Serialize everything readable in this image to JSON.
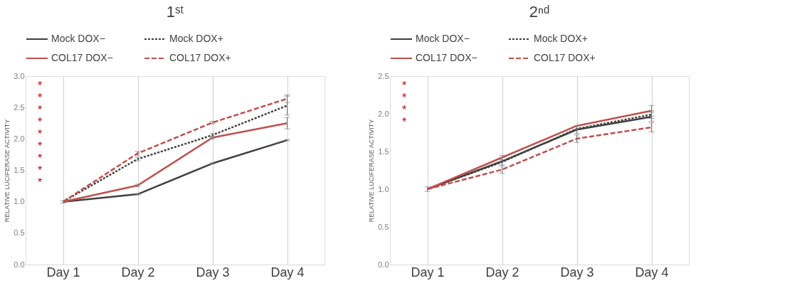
{
  "chart_data": [
    {
      "type": "line",
      "title": "1ˢᵗ",
      "ylabel": "RELATIVE LUCIFERASE ACTIVITY",
      "categories": [
        "Day 1",
        "Day 2",
        "Day 3",
        "Day 4"
      ],
      "ylim": [
        0,
        3
      ],
      "yticks": [
        {
          "value": 0,
          "label": "0.0"
        },
        {
          "value": 0.5,
          "label": "0.5"
        },
        {
          "value": 1,
          "label": "1.0"
        },
        {
          "value": 1.5,
          "label": "1.5"
        },
        {
          "value": 2,
          "label": "2.0"
        },
        {
          "value": 2.5,
          "label": "2.5"
        },
        {
          "value": 3,
          "label": "3.0"
        }
      ],
      "grid": "x",
      "legend": "top",
      "marker": "none",
      "series": [
        {
          "name": "Mock DOX−",
          "color": "#404040",
          "line_style": "solid",
          "values": [
            1.0,
            1.12,
            1.61,
            1.98
          ],
          "errors": [
            0.02,
            0.01,
            0.01,
            0.01
          ]
        },
        {
          "name": "Mock DOX+",
          "color": "#404040",
          "line_style": "dotted",
          "values": [
            1.0,
            1.68,
            2.06,
            2.53
          ],
          "errors": [
            null,
            0.03,
            0.03,
            0.15
          ]
        },
        {
          "name": "COL17 DOX−",
          "color": "#c0504d",
          "line_style": "solid",
          "values": [
            1.0,
            1.26,
            2.02,
            2.25
          ],
          "errors": [
            null,
            0.02,
            0.02,
            0.09
          ]
        },
        {
          "name": "COL17 DOX+",
          "color": "#c0504d",
          "line_style": "dashed",
          "values": [
            1.0,
            1.77,
            2.26,
            2.64
          ],
          "errors": [
            null,
            0.03,
            0.02,
            0.06
          ]
        }
      ],
      "annotations": [
        "*",
        "*",
        "*",
        "*",
        "*",
        "*",
        "*",
        "*",
        "*"
      ]
    },
    {
      "type": "line",
      "title": "2ⁿᵈ",
      "ylabel": "RELATIVE LUCIFERASE ACTIVITY",
      "categories": [
        "Day 1",
        "Day 2",
        "Day 3",
        "Day 4"
      ],
      "ylim": [
        0,
        2.5
      ],
      "yticks": [
        {
          "value": 0,
          "label": "0.0"
        },
        {
          "value": 0.5,
          "label": "0.5"
        },
        {
          "value": 1,
          "label": "1.0"
        },
        {
          "value": 1.5,
          "label": "1.5"
        },
        {
          "value": 2,
          "label": "2.0"
        },
        {
          "value": 2.5,
          "label": "2.5"
        }
      ],
      "grid": "x",
      "legend": "top",
      "marker": "none",
      "series": [
        {
          "name": "Mock DOX−",
          "color": "#404040",
          "line_style": "solid",
          "values": [
            1.0,
            1.37,
            1.79,
            1.96
          ],
          "errors": [
            0.03,
            0.05,
            0.05,
            0.06
          ]
        },
        {
          "name": "Mock DOX+",
          "color": "#404040",
          "line_style": "dotted",
          "values": [
            1.0,
            1.36,
            1.8,
            1.99
          ],
          "errors": [
            null,
            null,
            null,
            0.05
          ]
        },
        {
          "name": "COL17 DOX−",
          "color": "#c0504d",
          "line_style": "solid",
          "values": [
            1.0,
            1.42,
            1.84,
            2.04
          ],
          "errors": [
            null,
            0.03,
            null,
            0.07
          ]
        },
        {
          "name": "COL17 DOX+",
          "color": "#c0504d",
          "line_style": "dashed",
          "values": [
            1.0,
            1.26,
            1.67,
            1.82
          ],
          "errors": [
            null,
            0.05,
            0.05,
            0.06
          ]
        }
      ],
      "annotations": [
        "*",
        "*",
        "*",
        "*"
      ]
    }
  ]
}
